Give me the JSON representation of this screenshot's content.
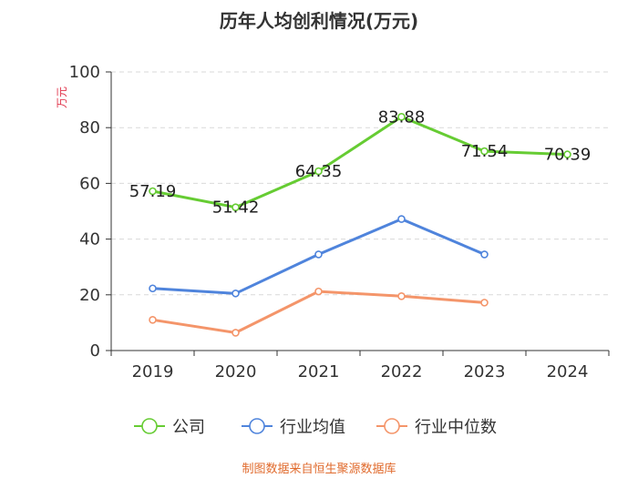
{
  "chart_data": {
    "type": "line",
    "title": "历年人均创利情况(万元)",
    "ylabel": "万元",
    "xlabel": "",
    "ylim": [
      0,
      100
    ],
    "yticks": [
      0,
      20,
      40,
      60,
      80,
      100
    ],
    "grid": true,
    "categories": [
      "2019",
      "2020",
      "2021",
      "2022",
      "2023",
      "2024"
    ],
    "series": [
      {
        "name": "公司",
        "color": "#66cc33",
        "values": [
          57.19,
          51.42,
          64.35,
          83.88,
          71.54,
          70.39
        ],
        "labels": [
          "57.19",
          "51.42",
          "64.35",
          "83.88",
          "71.54",
          "70.39"
        ]
      },
      {
        "name": "行业均值",
        "color": "#4f84dc",
        "values": [
          22.3,
          20.5,
          34.5,
          47.2,
          34.5,
          null
        ],
        "labels": null
      },
      {
        "name": "行业中位数",
        "color": "#f4956a",
        "values": [
          11.0,
          6.4,
          21.2,
          19.5,
          17.2,
          null
        ],
        "labels": null
      }
    ],
    "legend_position": "bottom",
    "source": "制图数据来自恒生聚源数据库"
  }
}
